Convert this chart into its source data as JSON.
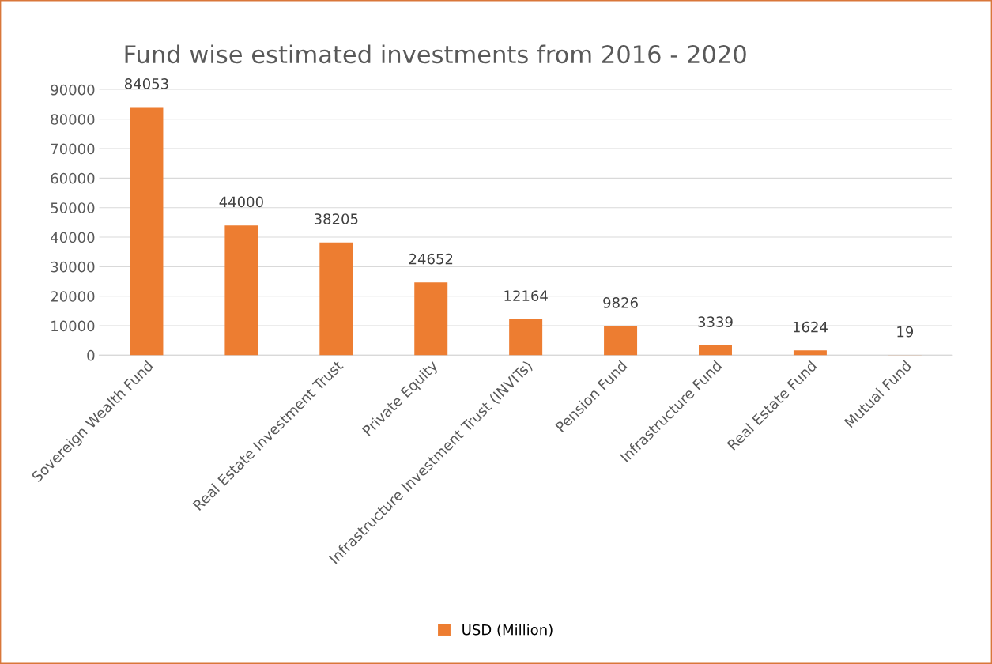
{
  "chart_data": {
    "type": "bar",
    "title": "Fund wise estimated investments from 2016 - 2020",
    "categories": [
      "Sovereign Wealth Fund",
      null,
      "Real Estate Investment Trust",
      "Private Equity",
      "Infrastructure Investment Trust (INVITs)",
      "Pension Fund",
      "Infrastructure Fund",
      "Real Estate Fund",
      "Mutual Fund"
    ],
    "series": [
      {
        "name": "USD (Million)",
        "color": "#ed7d31",
        "values": [
          84053,
          44000,
          38205,
          24652,
          12164,
          9826,
          3339,
          1624,
          19
        ]
      }
    ],
    "ylim": [
      0,
      90000
    ],
    "yticks": [
      0,
      10000,
      20000,
      30000,
      40000,
      50000,
      60000,
      70000,
      80000,
      90000
    ],
    "grid": "y",
    "legend": "bottom",
    "data_labels": true
  }
}
